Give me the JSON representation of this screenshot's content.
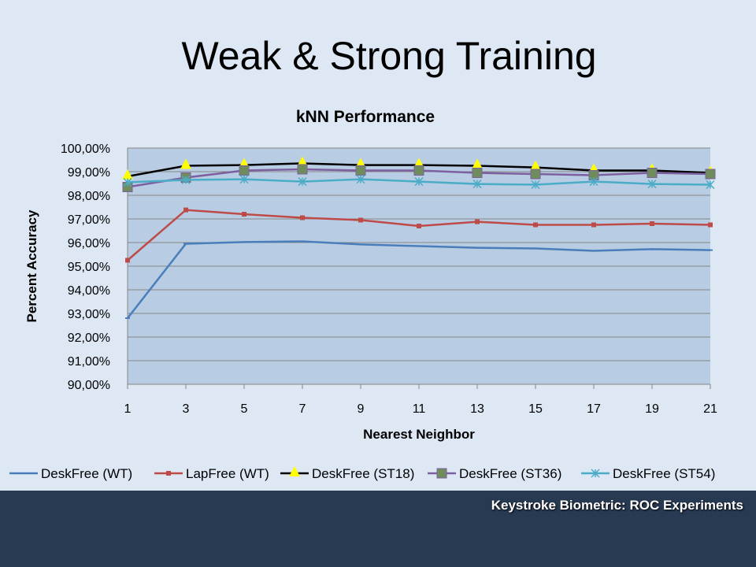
{
  "slide": {
    "title": "Weak & Strong Training",
    "footer": "Keystroke Biometric: ROC Experiments"
  },
  "colors": {
    "background": "#dde8f4",
    "plot_area": "#b8cde4",
    "footer_bar": "#273a52"
  },
  "chart_data": {
    "type": "line",
    "title": "kNN Performance",
    "xlabel": "Nearest Neighbor",
    "ylabel": "Percent Accuracy",
    "x": [
      1,
      3,
      5,
      7,
      9,
      11,
      13,
      15,
      17,
      19,
      21
    ],
    "ylim": [
      90,
      100
    ],
    "yticks": [
      "90,00%",
      "91,00%",
      "92,00%",
      "93,00%",
      "94,00%",
      "95,00%",
      "96,00%",
      "97,00%",
      "98,00%",
      "99,00%",
      "100,00%"
    ],
    "grid": true,
    "legend": "bottom",
    "series": [
      {
        "name": "DeskFree (WT)",
        "color": "#4a7ebb",
        "marker": "dash",
        "values": [
          92.8,
          95.95,
          96.02,
          96.05,
          95.92,
          95.85,
          95.78,
          95.75,
          95.65,
          95.72,
          95.68
        ]
      },
      {
        "name": "LapFree (WT)",
        "color": "#be4b48",
        "marker": "square",
        "values": [
          95.25,
          97.38,
          97.2,
          97.05,
          96.95,
          96.7,
          96.88,
          96.75,
          96.75,
          96.8,
          96.75
        ]
      },
      {
        "name": "DeskFree (ST18)",
        "color": "#000000",
        "marker": "triangle",
        "values": [
          98.8,
          99.25,
          99.28,
          99.35,
          99.28,
          99.28,
          99.25,
          99.18,
          99.05,
          99.05,
          98.95
        ]
      },
      {
        "name": "DeskFree (ST36)",
        "color": "#7d60a0",
        "marker": "bigsquare",
        "values": [
          98.35,
          98.75,
          99.05,
          99.1,
          99.05,
          99.05,
          98.95,
          98.9,
          98.85,
          98.95,
          98.9
        ]
      },
      {
        "name": "DeskFree (ST54)",
        "color": "#4aacc6",
        "marker": "star",
        "values": [
          98.55,
          98.65,
          98.68,
          98.58,
          98.68,
          98.58,
          98.48,
          98.45,
          98.58,
          98.48,
          98.45
        ]
      }
    ]
  }
}
